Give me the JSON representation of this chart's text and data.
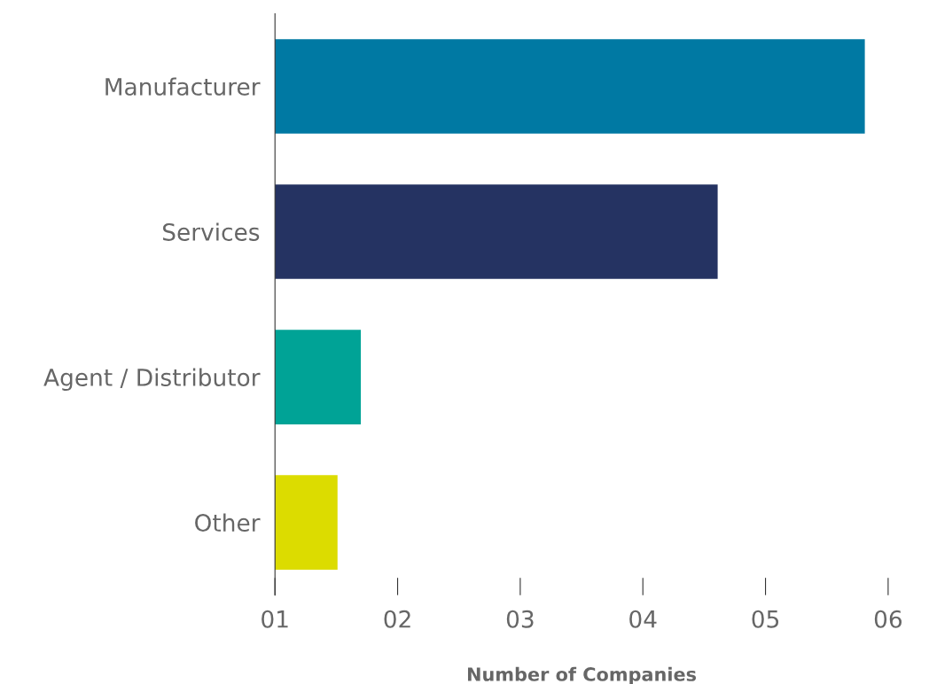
{
  "chart_data": {
    "type": "bar",
    "orientation": "horizontal",
    "xlabel": "Number of Companies",
    "categories": [
      "Manufacturer",
      "Services",
      "Agent / Distributor",
      "Other"
    ],
    "values": [
      5.81,
      4.61,
      1.7,
      1.51
    ],
    "colors": [
      "#0079a3",
      "#253362",
      "#00a396",
      "#dcdc00"
    ],
    "xlim": [
      1,
      6
    ],
    "xticks": [
      {
        "value": 1,
        "label": "01"
      },
      {
        "value": 2,
        "label": "02"
      },
      {
        "value": 3,
        "label": "03"
      },
      {
        "value": 4,
        "label": "04"
      },
      {
        "value": 5,
        "label": "05"
      },
      {
        "value": 6,
        "label": "06"
      }
    ],
    "grid": false
  }
}
